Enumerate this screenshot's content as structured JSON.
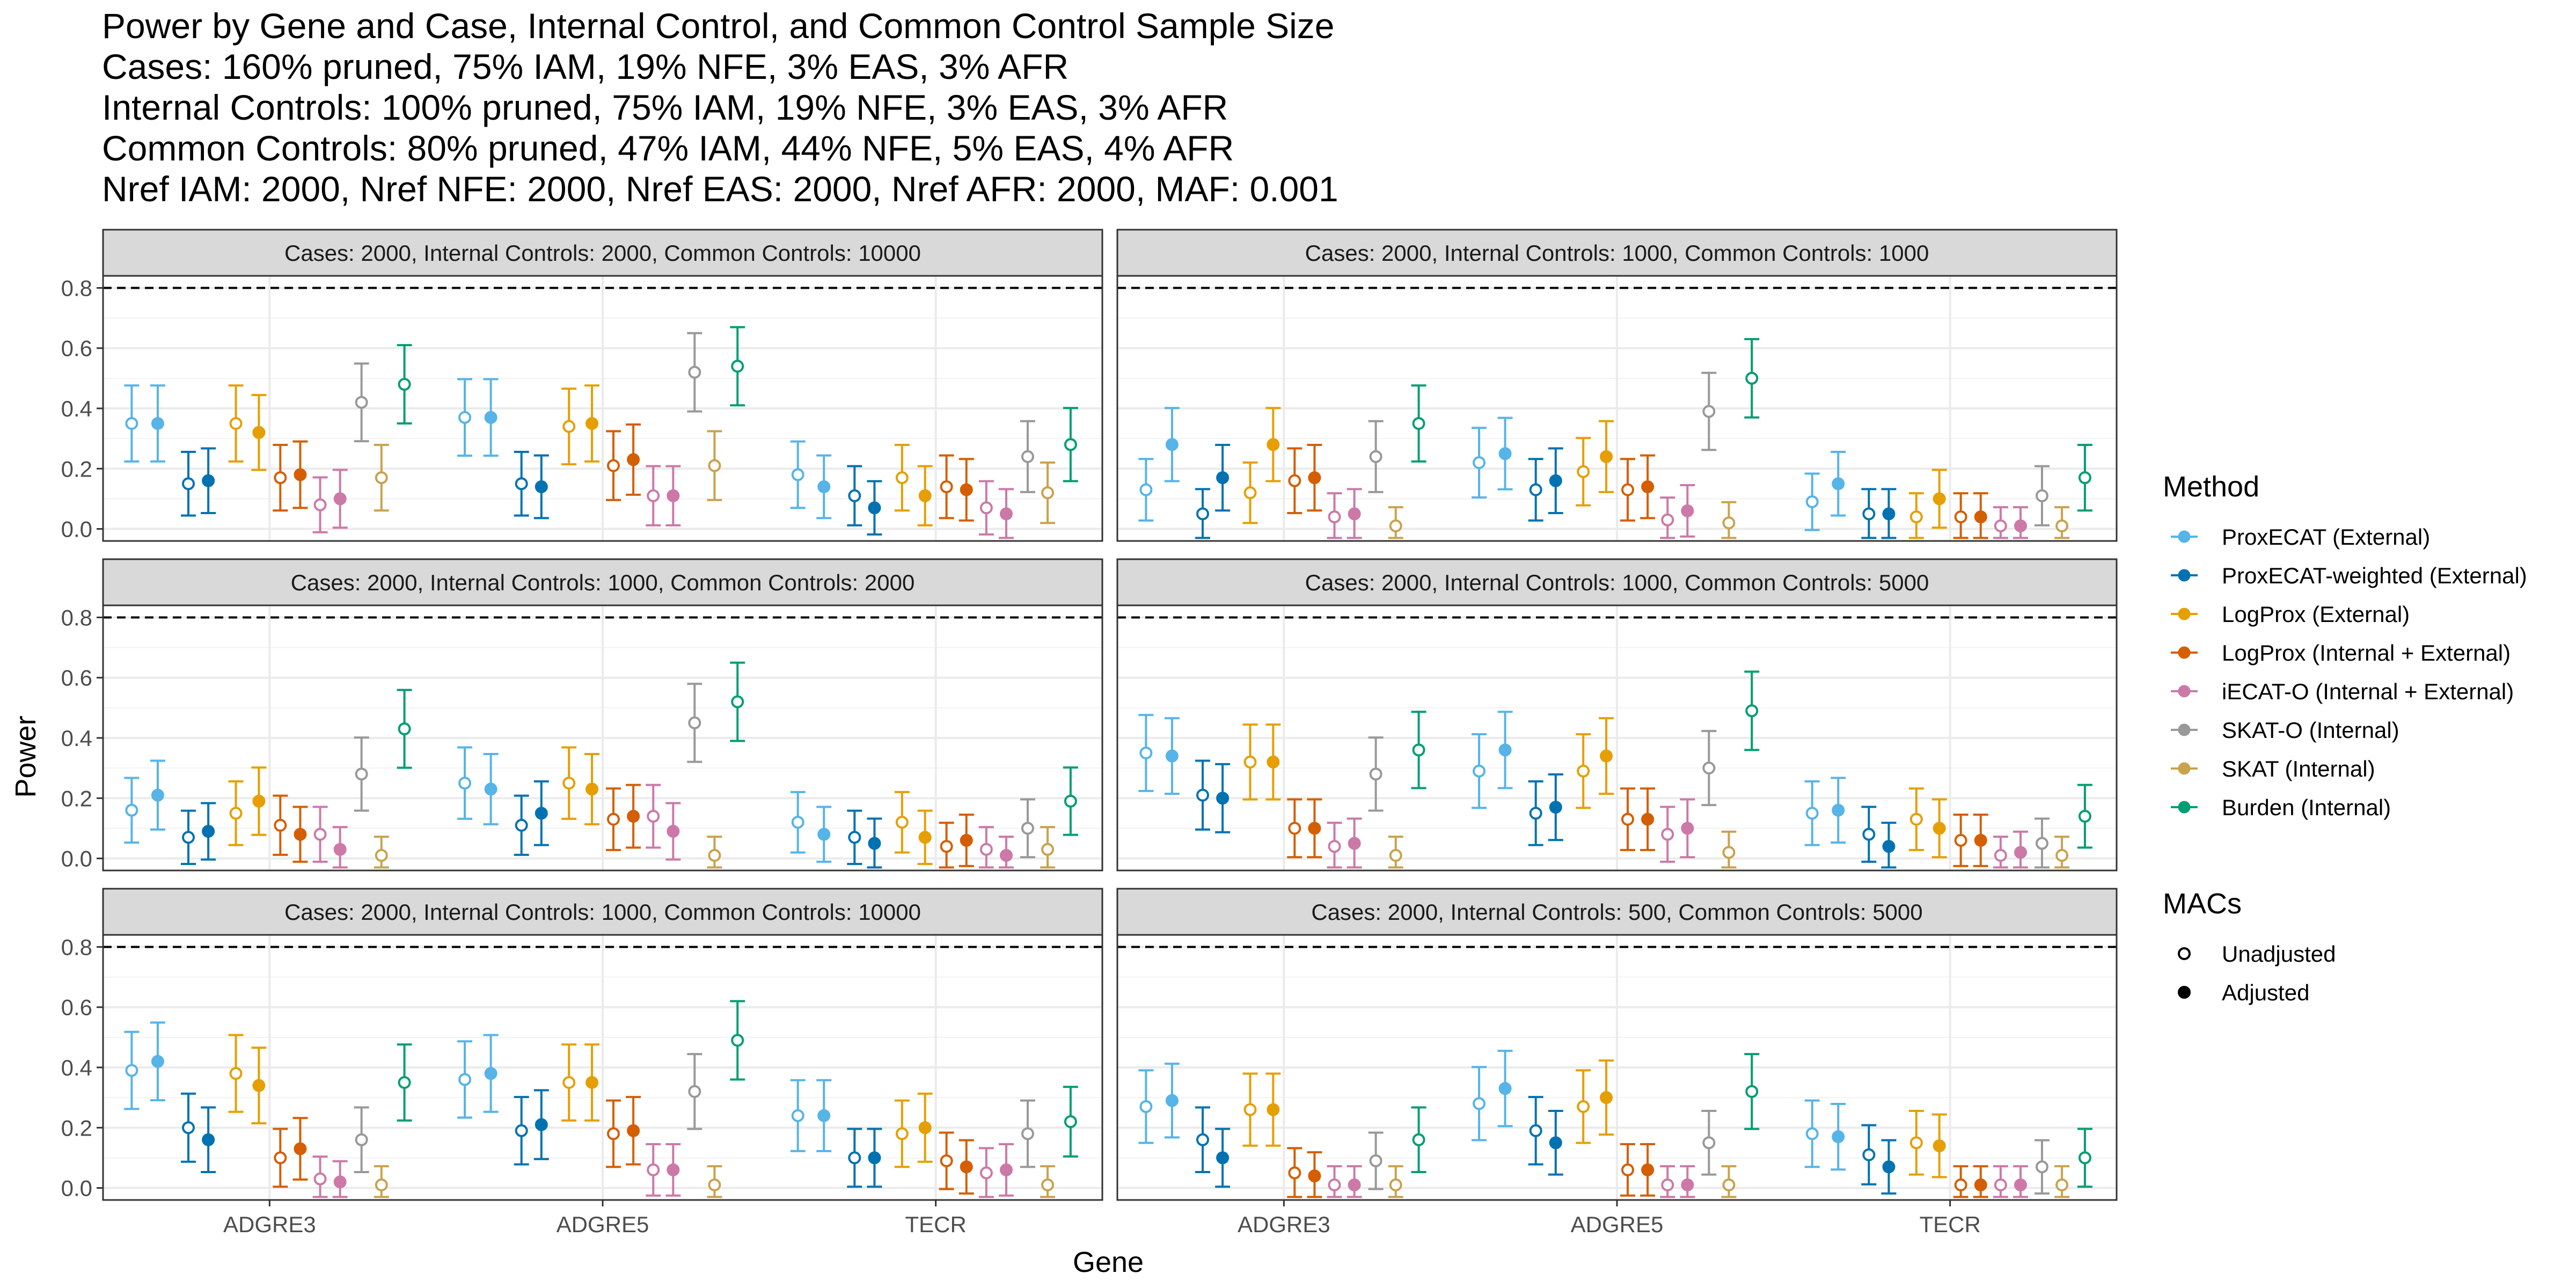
{
  "title_lines": [
    "Power by Gene and Case, Internal Control, and Common Control Sample Size",
    "Cases: 160% pruned, 75% IAM, 19% NFE, 3% EAS, 3% AFR",
    "Internal Controls: 100% pruned, 75% IAM, 19% NFE, 3% EAS, 3% AFR",
    "Common Controls: 80% pruned, 47% IAM, 44% NFE, 5% EAS, 4% AFR",
    "Nref IAM: 2000, Nref NFE: 2000, Nref EAS: 2000, Nref AFR: 2000, MAF: 0.001"
  ],
  "chart_data": {
    "type": "scatter",
    "subtype": "faceted point with error bars",
    "xlabel": "Gene",
    "ylabel": "Power",
    "ylim": [
      -0.04,
      0.84
    ],
    "yticks": [
      0.0,
      0.2,
      0.4,
      0.6,
      0.8
    ],
    "ytick_labels": [
      "0.0",
      "0.2",
      "0.4",
      "0.6",
      "0.8"
    ],
    "reference_line": {
      "y": 0.8,
      "style": "dashed",
      "color": "#000000"
    },
    "genes": [
      "ADGRE3",
      "ADGRE5",
      "TECR"
    ],
    "grid": true,
    "legend_position": "right",
    "methods": [
      {
        "name": "ProxECAT (External)",
        "color": "#56B4E9"
      },
      {
        "name": "ProxECAT-weighted (External)",
        "color": "#0072B2"
      },
      {
        "name": "LogProx (External)",
        "color": "#E69F00"
      },
      {
        "name": "LogProx (Internal + External)",
        "color": "#D55E00"
      },
      {
        "name": "iECAT-O (Internal + External)",
        "color": "#CC79A7"
      },
      {
        "name": "SKAT-O (Internal)",
        "color": "#999999"
      },
      {
        "name": "SKAT (Internal)",
        "color": "#C9A24D"
      },
      {
        "name": "Burden (Internal)",
        "color": "#009E73"
      }
    ],
    "legend": {
      "method_title": "Method",
      "macs_title": "MACs",
      "macs": [
        "Unadjusted",
        "Adjusted"
      ]
    },
    "value_order": "per gene: for each method in legend order, [Unadjusted, Adjusted]; ProxECAT-weighted, LogProx(Int+Ext) and iECAT-O have both; SKAT-O, SKAT, Burden have Unadjusted only",
    "panels": [
      {
        "label": "Cases: 2000, Internal Controls: 2000, Common Controls: 10000",
        "values": {
          "ADGRE3": [
            0.35,
            0.35,
            0.15,
            0.16,
            0.35,
            0.32,
            0.17,
            0.18,
            0.08,
            0.1,
            0.42,
            0.17,
            0.48
          ],
          "ADGRE5": [
            0.37,
            0.37,
            0.15,
            0.14,
            0.34,
            0.35,
            0.21,
            0.23,
            0.11,
            0.11,
            0.52,
            0.21,
            0.54
          ],
          "TECR": [
            0.18,
            0.14,
            0.11,
            0.07,
            0.17,
            0.11,
            0.14,
            0.13,
            0.07,
            0.05,
            0.24,
            0.12,
            0.28
          ]
        }
      },
      {
        "label": "Cases: 2000, Internal Controls: 1000, Common Controls: 1000",
        "values": {
          "ADGRE3": [
            0.13,
            0.28,
            0.05,
            0.17,
            0.12,
            0.28,
            0.16,
            0.17,
            0.04,
            0.05,
            0.24,
            0.01,
            0.35
          ],
          "ADGRE5": [
            0.22,
            0.25,
            0.13,
            0.16,
            0.19,
            0.24,
            0.13,
            0.14,
            0.03,
            0.06,
            0.39,
            0.02,
            0.5
          ],
          "TECR": [
            0.09,
            0.15,
            0.05,
            0.05,
            0.04,
            0.1,
            0.04,
            0.04,
            0.01,
            0.01,
            0.11,
            0.01,
            0.17
          ]
        }
      },
      {
        "label": "Cases: 2000, Internal Controls: 1000, Common Controls: 2000",
        "values": {
          "ADGRE3": [
            0.16,
            0.21,
            0.07,
            0.09,
            0.15,
            0.19,
            0.11,
            0.08,
            0.08,
            0.03,
            0.28,
            0.01,
            0.43
          ],
          "ADGRE5": [
            0.25,
            0.23,
            0.11,
            0.15,
            0.25,
            0.23,
            0.13,
            0.14,
            0.14,
            0.09,
            0.45,
            0.01,
            0.52
          ],
          "TECR": [
            0.12,
            0.08,
            0.07,
            0.05,
            0.12,
            0.07,
            0.04,
            0.06,
            0.03,
            0.01,
            0.1,
            0.03,
            0.19
          ]
        }
      },
      {
        "label": "Cases: 2000, Internal Controls: 1000, Common Controls: 5000",
        "values": {
          "ADGRE3": [
            0.35,
            0.34,
            0.21,
            0.2,
            0.32,
            0.32,
            0.1,
            0.1,
            0.04,
            0.05,
            0.28,
            0.01,
            0.36
          ],
          "ADGRE5": [
            0.29,
            0.36,
            0.15,
            0.17,
            0.29,
            0.34,
            0.13,
            0.13,
            0.08,
            0.1,
            0.3,
            0.02,
            0.49
          ],
          "TECR": [
            0.15,
            0.16,
            0.08,
            0.04,
            0.13,
            0.1,
            0.06,
            0.06,
            0.01,
            0.02,
            0.05,
            0.01,
            0.14
          ]
        }
      },
      {
        "label": "Cases: 2000, Internal Controls: 1000, Common Controls: 10000",
        "values": {
          "ADGRE3": [
            0.39,
            0.42,
            0.2,
            0.16,
            0.38,
            0.34,
            0.1,
            0.13,
            0.03,
            0.02,
            0.16,
            0.01,
            0.35
          ],
          "ADGRE5": [
            0.36,
            0.38,
            0.19,
            0.21,
            0.35,
            0.35,
            0.18,
            0.19,
            0.06,
            0.06,
            0.32,
            0.01,
            0.49
          ],
          "TECR": [
            0.24,
            0.24,
            0.1,
            0.1,
            0.18,
            0.2,
            0.09,
            0.07,
            0.05,
            0.06,
            0.18,
            0.01,
            0.22
          ]
        }
      },
      {
        "label": "Cases: 2000, Internal Controls: 500, Common Controls: 5000",
        "values": {
          "ADGRE3": [
            0.27,
            0.29,
            0.16,
            0.1,
            0.26,
            0.26,
            0.05,
            0.04,
            0.01,
            0.01,
            0.09,
            0.01,
            0.16
          ],
          "ADGRE5": [
            0.28,
            0.33,
            0.19,
            0.15,
            0.27,
            0.3,
            0.06,
            0.06,
            0.01,
            0.01,
            0.15,
            0.01,
            0.32
          ],
          "TECR": [
            0.18,
            0.17,
            0.11,
            0.07,
            0.15,
            0.14,
            0.01,
            0.01,
            0.01,
            0.01,
            0.07,
            0.01,
            0.1
          ]
        }
      }
    ]
  }
}
